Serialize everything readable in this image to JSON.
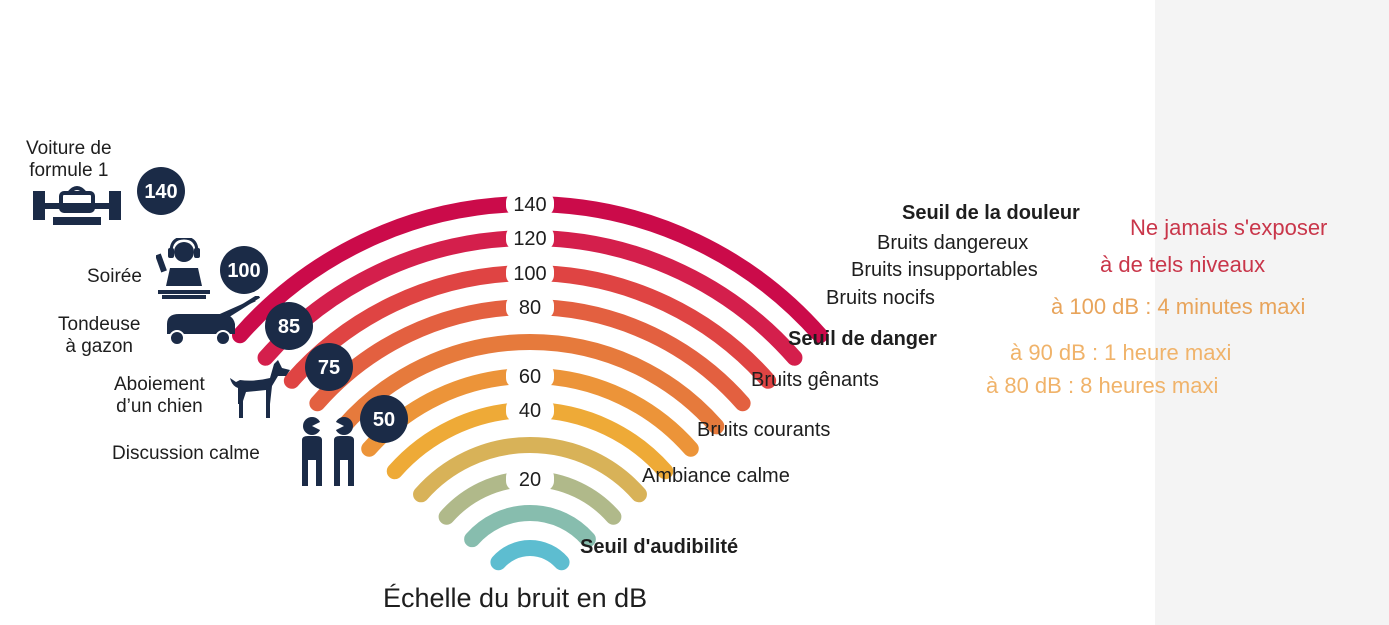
{
  "title": "Échelle du bruit en dB",
  "colors": {
    "arc_scale": [
      "#5dbdd0",
      "#87bdae",
      "#b0b98a",
      "#d8b258",
      "#eeaa37",
      "#ec9439",
      "#e67a3c",
      "#e36040",
      "#df4443",
      "#d41f4c",
      "#cb0b4a"
    ],
    "badge": "#1b2b47",
    "note_red": "#c9364a",
    "note_orange": "#e8a45b",
    "note_amber": "#f0b36a"
  },
  "arc_labels": [
    "20",
    "40",
    "60",
    "80",
    "100",
    "120",
    "140"
  ],
  "categories": {
    "audibility": "Seuil d'audibilité",
    "calm_ambience": "Ambiance calme",
    "common_noise": "Bruits courants",
    "annoying_noise": "Bruits gênants",
    "danger_threshold": "Seuil de danger",
    "harmful_noise": "Bruits nocifs",
    "unbearable_noise": "Bruits insupportables",
    "dangerous_noise": "Bruits dangereux",
    "pain_threshold": "Seuil de la douleur"
  },
  "sources": [
    {
      "label": "Voiture de\nformule 1",
      "value": "140",
      "icon": "formula1-car-icon"
    },
    {
      "label": "Soirée",
      "value": "100",
      "icon": "dj-headphones-icon"
    },
    {
      "label": "Tondeuse\nà gazon",
      "value": "85",
      "icon": "lawn-mower-icon"
    },
    {
      "label": "Aboiement\nd’un chien",
      "value": "75",
      "icon": "dog-icon"
    },
    {
      "label": "Discussion calme",
      "value": "50",
      "icon": "two-people-talking-icon"
    }
  ],
  "exposure_notes": {
    "never_1": "Ne jamais s'exposer",
    "never_2": "à de tels niveaux",
    "limit_100": "à 100 dB : 4 minutes maxi",
    "limit_90": "à 90 dB : 1 heure maxi",
    "limit_80": "à 80 dB : 8 heures maxi"
  }
}
